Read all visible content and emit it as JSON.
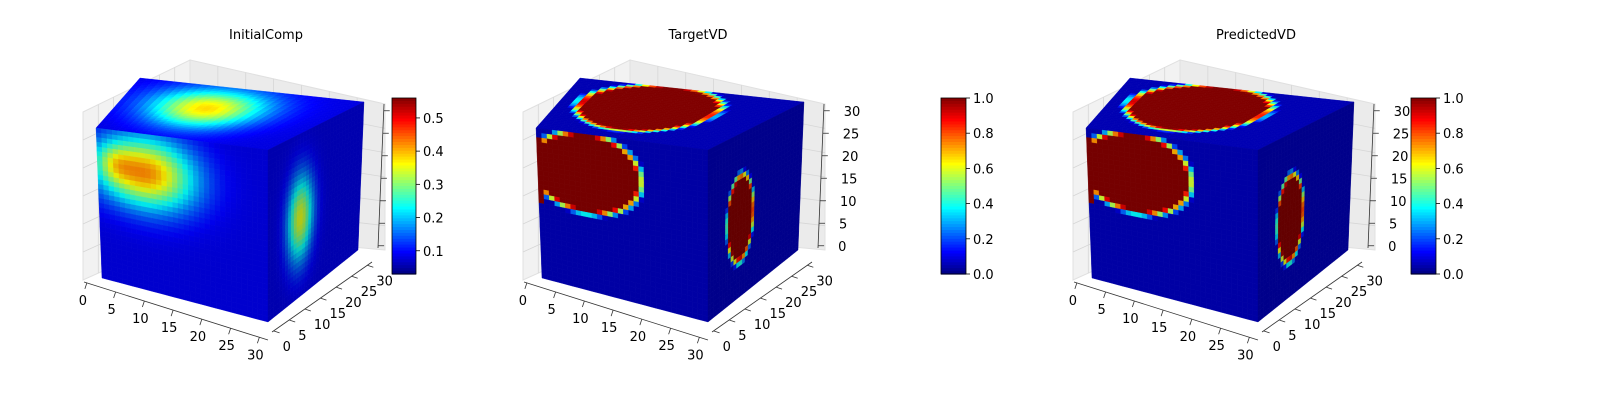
{
  "chart_data": [
    {
      "type": "voxel-3d",
      "title": "InitialComp",
      "grid_size": 32,
      "axes": {
        "x_ticks": [
          "0",
          "5",
          "10",
          "15",
          "20",
          "25",
          "30"
        ],
        "y_ticks": [
          "0",
          "5",
          "10",
          "15",
          "20",
          "25",
          "30"
        ],
        "z_ticks": []
      },
      "colorbar": {
        "colormap": "jet",
        "range": [
          0.03,
          0.56
        ],
        "ticks": [
          "0.1",
          "0.2",
          "0.3",
          "0.4",
          "0.5"
        ]
      },
      "features": {
        "top_blob_value": 0.38,
        "front_blob_value": 0.42,
        "front_blob_peak": 0.5,
        "side_blob_value": 0.35,
        "background_value": 0.08
      }
    },
    {
      "type": "voxel-3d",
      "title": "TargetVD",
      "grid_size": 32,
      "axes": {
        "x_ticks": [
          "0",
          "5",
          "10",
          "15",
          "20",
          "25",
          "30"
        ],
        "y_ticks": [
          "0",
          "5",
          "10",
          "15",
          "20",
          "25",
          "30"
        ],
        "z_ticks": [
          "0",
          "5",
          "10",
          "15",
          "20",
          "25",
          "30"
        ]
      },
      "colorbar": {
        "colormap": "jet",
        "range": [
          0.0,
          1.0
        ],
        "ticks": [
          "0.0",
          "0.2",
          "0.4",
          "0.6",
          "0.8",
          "1.0"
        ]
      },
      "features": {
        "top_blob_value": 1.0,
        "front_blob_value": 1.0,
        "side_blob_value": 1.0,
        "background_value": 0.05
      }
    },
    {
      "type": "voxel-3d",
      "title": "PredictedVD",
      "grid_size": 32,
      "axes": {
        "x_ticks": [
          "0",
          "5",
          "10",
          "15",
          "20",
          "25",
          "30"
        ],
        "y_ticks": [
          "0",
          "5",
          "10",
          "15",
          "20",
          "25",
          "30"
        ],
        "z_ticks": [
          "0",
          "5",
          "10",
          "15",
          "20",
          "25",
          "30"
        ]
      },
      "colorbar": {
        "colormap": "jet",
        "range": [
          0.0,
          1.0
        ],
        "ticks": [
          "0.0",
          "0.2",
          "0.4",
          "0.6",
          "0.8",
          "1.0"
        ]
      },
      "features": {
        "top_blob_value": 1.0,
        "front_blob_value": 1.0,
        "side_blob_value": 1.0,
        "background_value": 0.05
      }
    }
  ]
}
